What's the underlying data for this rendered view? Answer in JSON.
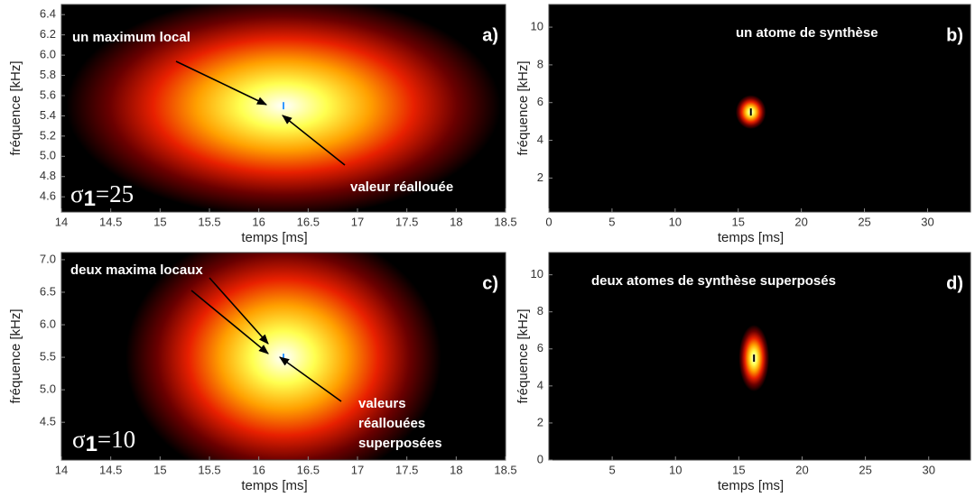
{
  "chart_data": [
    {
      "type": "heatmap",
      "panel": "a)",
      "x_label": "temps [ms]",
      "y_label": "fréquence  [kHz]",
      "xlim": [
        14,
        18.5
      ],
      "xticks": [
        14,
        14.5,
        15,
        15.5,
        16,
        16.5,
        17,
        17.5,
        18,
        18.5
      ],
      "ylim": [
        4.45,
        6.5
      ],
      "yticks": [
        4.6,
        4.8,
        {
          "value": 5,
          "label": "5.0"
        },
        5.2,
        5.4,
        5.6,
        5.8,
        {
          "value": 6,
          "label": "6.0"
        },
        6.2,
        6.4
      ],
      "peak": {
        "x": 16.25,
        "y": 5.5
      },
      "spread": {
        "x": 2.2,
        "y": 1.1
      },
      "peak_color": "#3399ff",
      "colormap": [
        "#ffffff",
        "#ffff50",
        "#ffa000",
        "#e82000",
        "#6a0000",
        "#000000"
      ],
      "annotations": [
        "un maximum local",
        "valeur réallouée"
      ],
      "sigma": {
        "symbol": "σ",
        "index": "1",
        "text": "=25"
      }
    },
    {
      "type": "heatmap",
      "panel": "b)",
      "x_label": "temps [ms]",
      "y_label": "fréquence [kHz]",
      "xlim": [
        0,
        33.4
      ],
      "xticks": [
        0,
        5,
        10,
        15,
        20,
        25,
        30
      ],
      "ylim": [
        0.2,
        11.2
      ],
      "yticks": [
        2,
        4,
        6,
        8,
        10
      ],
      "peak": {
        "x": 16,
        "y": 5.5
      },
      "spread": {
        "x": 1.2,
        "y": 0.9
      },
      "peak_color": "#000000",
      "colormap": [
        "#ffffff",
        "#ffff50",
        "#ffa000",
        "#e82000",
        "#6a0000",
        "#000000"
      ],
      "annotations": [
        "un atome de synthèse"
      ]
    },
    {
      "type": "heatmap",
      "panel": "c)",
      "x_label": "temps [ms]",
      "y_label": "fréquence  [kHz]",
      "xlim": [
        14,
        18.5
      ],
      "xticks": [
        14,
        14.5,
        15,
        15.5,
        16,
        16.5,
        17,
        17.5,
        18,
        18.5
      ],
      "ylim": [
        3.92,
        7.11
      ],
      "yticks": [
        4.5,
        {
          "value": 5,
          "label": "5.0"
        },
        5.5,
        {
          "value": 6,
          "label": "6.0"
        },
        6.5,
        {
          "value": 7,
          "label": "7.0"
        }
      ],
      "peak": {
        "x": 16.25,
        "y": 5.5
      },
      "spread": {
        "x": 1.6,
        "y": 2.0
      },
      "peak_color": "#3399ff",
      "colormap": [
        "#ffffff",
        "#ffff50",
        "#ffa000",
        "#e82000",
        "#6a0000",
        "#000000"
      ],
      "annotations": [
        "deux maxima locaux",
        "valeurs",
        "réallouées",
        "superposées"
      ],
      "sigma": {
        "symbol": "σ",
        "index": "1",
        "text": "=10"
      }
    },
    {
      "type": "heatmap",
      "panel": "d)",
      "x_label": "temps [ms]",
      "y_label": "fréquence [kHz]",
      "xlim": [
        0,
        33.3
      ],
      "xticks": [
        5,
        10,
        15,
        20,
        25,
        30
      ],
      "ylim": [
        0,
        11.2
      ],
      "yticks": [
        0,
        2,
        4,
        6,
        8,
        10
      ],
      "peak": {
        "x": 16.2,
        "y": 5.5
      },
      "spread": {
        "x": 1.2,
        "y": 1.8
      },
      "peak_color": "#000000",
      "colormap": [
        "#ffffff",
        "#ffff50",
        "#ffa000",
        "#e82000",
        "#6a0000",
        "#000000"
      ],
      "annotations": [
        "deux atomes de synthèse superposés"
      ]
    }
  ]
}
